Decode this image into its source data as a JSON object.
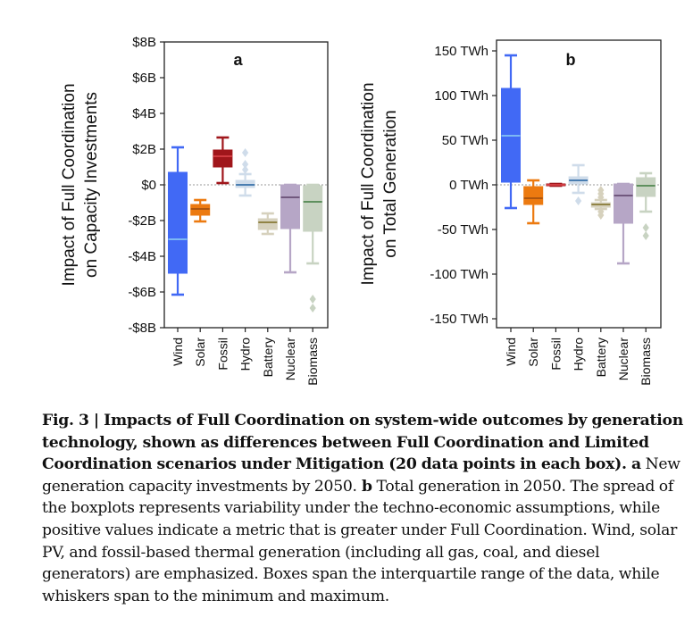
{
  "chart_data": [
    {
      "type": "box",
      "panel_label": "a",
      "title": "",
      "xlabel": "",
      "ylabel_lines": [
        "Impact of Full Coordination",
        "on Capacity Investments"
      ],
      "ylim": [
        -8,
        8
      ],
      "y_unit": "$B",
      "yticks": [
        8,
        6,
        4,
        2,
        0,
        -2,
        -4,
        -6,
        -8
      ],
      "ytick_labels": [
        "$8B",
        "$6B",
        "$4B",
        "$2B",
        "$0",
        "-$2B",
        "-$4B",
        "-$6B",
        "-$8B"
      ],
      "zero_line": true,
      "grid": false,
      "categories": [
        "Wind",
        "Solar",
        "Fossil",
        "Hydro",
        "Battery",
        "Nuclear",
        "Biomass"
      ],
      "boxes": [
        {
          "name": "Wind",
          "min": -6.15,
          "q1": -4.95,
          "median": -3.05,
          "q3": 0.7,
          "max": 2.1,
          "outliers": []
        },
        {
          "name": "Solar",
          "min": -2.05,
          "q1": -1.7,
          "median": -1.35,
          "q3": -1.1,
          "max": -0.85,
          "outliers": []
        },
        {
          "name": "Fossil",
          "min": 0.1,
          "q1": 1.0,
          "median": 1.6,
          "q3": 1.95,
          "max": 2.65,
          "outliers": []
        },
        {
          "name": "Hydro",
          "min": -0.6,
          "q1": -0.15,
          "median": 0.0,
          "q3": 0.25,
          "max": 0.6,
          "outliers": [
            0.85,
            1.15,
            1.8
          ]
        },
        {
          "name": "Battery",
          "min": -2.75,
          "q1": -2.5,
          "median": -2.1,
          "q3": -1.9,
          "max": -1.6,
          "outliers": []
        },
        {
          "name": "Nuclear",
          "min": -4.9,
          "q1": -2.45,
          "median": -0.7,
          "q3": 0.0,
          "max": 0.0,
          "outliers": []
        },
        {
          "name": "Biomass",
          "min": -4.4,
          "q1": -2.6,
          "median": -0.95,
          "q3": -0.05,
          "max": 0.0,
          "outliers": [
            -6.4,
            -6.9
          ]
        }
      ]
    },
    {
      "type": "box",
      "panel_label": "b",
      "title": "",
      "xlabel": "",
      "ylabel_lines": [
        "Impact of Full Coordination",
        "on Total Generation"
      ],
      "ylim": [
        -160,
        160
      ],
      "y_unit": "TWh",
      "yticks": [
        150,
        100,
        50,
        0,
        -50,
        -100,
        -150
      ],
      "ytick_labels": [
        "150 TWh",
        "100 TWh",
        "50 TWh",
        "0 TWh",
        "-50 TWh",
        "-100 TWh",
        "-150 TWh"
      ],
      "zero_line": true,
      "grid": false,
      "categories": [
        "Wind",
        "Solar",
        "Fossil",
        "Hydro",
        "Battery",
        "Nuclear",
        "Biomass"
      ],
      "boxes": [
        {
          "name": "Wind",
          "min": -26,
          "q1": 3,
          "median": 55,
          "q3": 108,
          "max": 145,
          "outliers": []
        },
        {
          "name": "Solar",
          "min": -43,
          "q1": -22,
          "median": -15,
          "q3": -2,
          "max": 5,
          "outliers": []
        },
        {
          "name": "Fossil",
          "min": -1,
          "q1": -1,
          "median": 0,
          "q3": 1,
          "max": 1,
          "outliers": []
        },
        {
          "name": "Hydro",
          "min": -9,
          "q1": 1,
          "median": 5,
          "q3": 9,
          "max": 22,
          "outliers": [
            -18
          ]
        },
        {
          "name": "Battery",
          "min": -27,
          "q1": -25,
          "median": -22,
          "q3": -20,
          "max": -17,
          "outliers": [
            -34,
            -30,
            -14,
            -10,
            -6
          ]
        },
        {
          "name": "Nuclear",
          "min": -88,
          "q1": -43,
          "median": -12,
          "q3": 1,
          "max": 1,
          "outliers": []
        },
        {
          "name": "Biomass",
          "min": -30,
          "q1": -13,
          "median": -1,
          "q3": 8,
          "max": 13,
          "outliers": [
            -48,
            -57
          ]
        }
      ]
    }
  ],
  "colors": {
    "Wind": {
      "box": "#4169f5",
      "median": "#8fd3f4"
    },
    "Solar": {
      "box": "#ec7a10",
      "median": "#9a4b0e"
    },
    "Fossil": {
      "box": "#a0161b",
      "median": "#e0474c"
    },
    "Hydro": {
      "box": "#cfdcea",
      "median": "#1f5f9e"
    },
    "Battery": {
      "box": "#d6d1bd",
      "median": "#7a6a1e"
    },
    "Nuclear": {
      "box": "#b6a6c6",
      "median": "#5a3f66"
    },
    "Biomass": {
      "box": "#c8d3c2",
      "median": "#3c7a3c"
    }
  },
  "caption": {
    "fig_label": "Fig. 3 |",
    "bold_title": " Impacts of Full Coordination on system-wide outcomes by generation technology, shown as differences between Full Coordination and Limited Coordination scenarios under Mitigation (20 data points in each box).",
    "a_label": " a",
    "a_text": " New generation capacity investments by 2050.",
    "b_label": " b",
    "b_text": " Total generation in 2050. The spread of the boxplots represents variability under the techno-economic assumptions, while positive values indicate a metric that is greater under Full Coordination. Wind, solar PV, and fossil-based thermal generation (including all gas, coal, and diesel generators) are emphasized. Boxes span the interquartile range of the data, while whiskers span to the minimum and maximum."
  }
}
